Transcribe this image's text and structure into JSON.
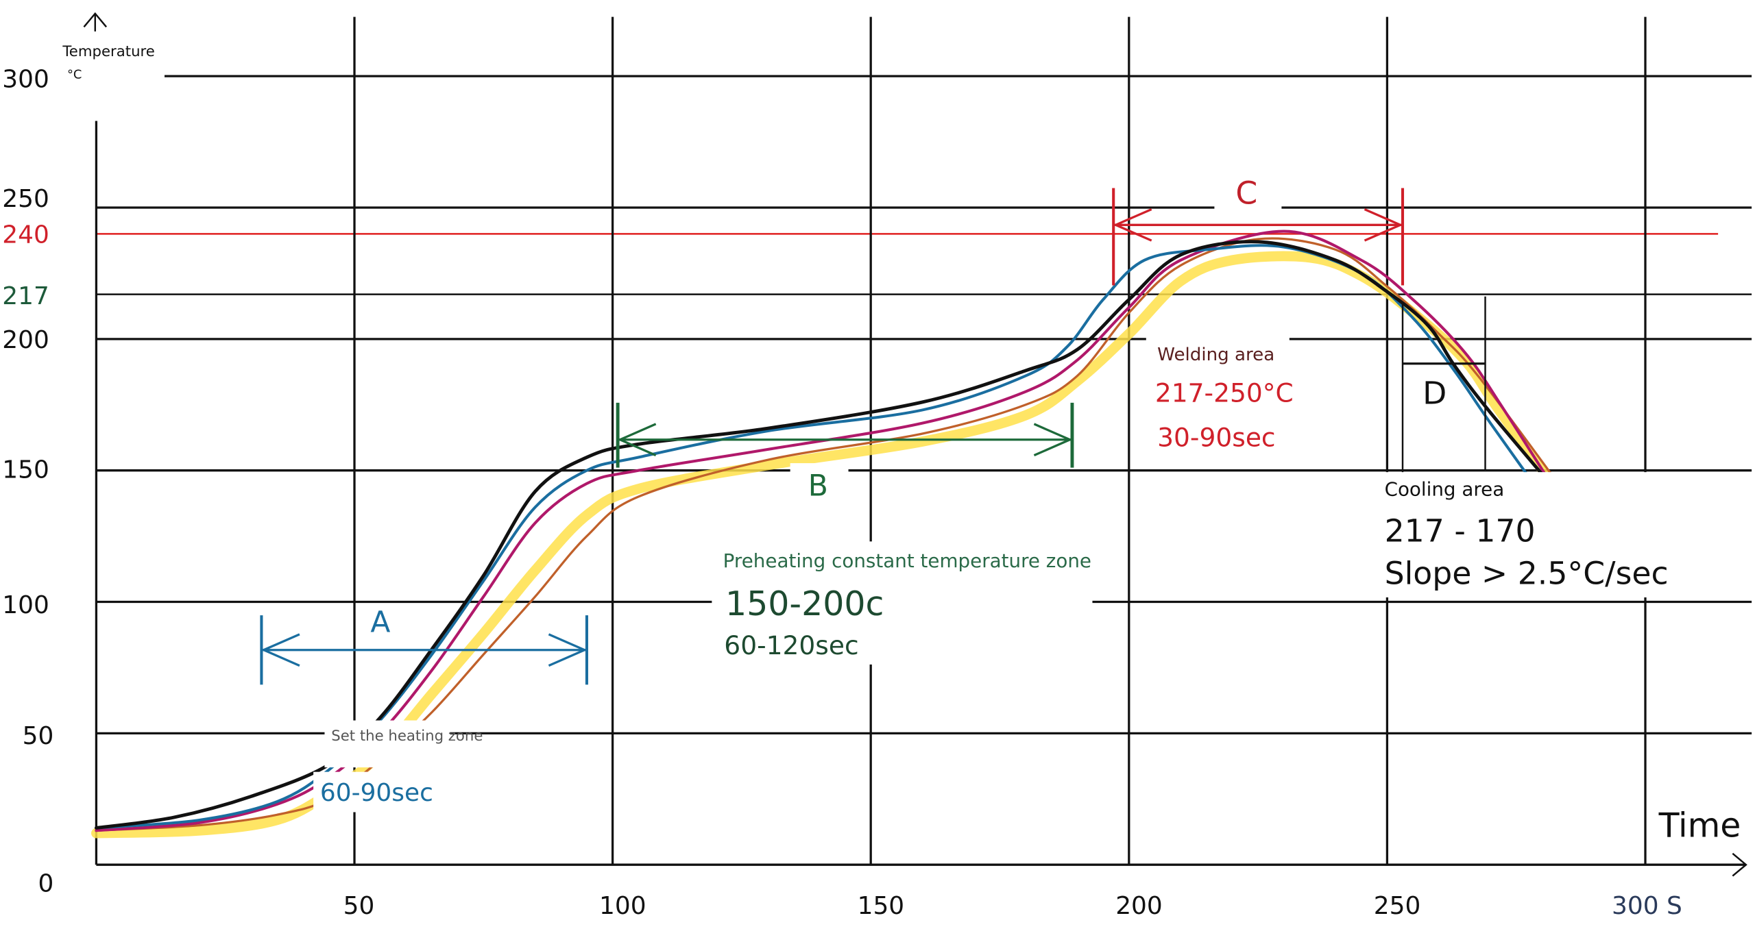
{
  "chart_data": {
    "type": "line",
    "ylabel": "Temperature",
    "yunit": "°C",
    "xlabel": "Time",
    "xlim": [
      0,
      300
    ],
    "ylim": [
      0,
      300
    ],
    "grid": true,
    "x_ticks": [
      "50",
      "100",
      "150",
      "200",
      "250",
      "300 S"
    ],
    "x_tick_values": [
      50,
      100,
      150,
      200,
      250,
      300
    ],
    "y_ticks": [
      "0",
      "50",
      "100",
      "150",
      "200",
      "217",
      "240",
      "250",
      "300"
    ],
    "y_tick_values": [
      0,
      50,
      100,
      150,
      200,
      217,
      240,
      250,
      300
    ],
    "y_tick_colors": {
      "217": "#1d5a3a",
      "240": "#d0202a"
    },
    "reference_line": {
      "y": 240,
      "color": "#e02020"
    },
    "series": [
      {
        "color": "#ffe14a",
        "width": "thick",
        "points": [
          [
            0,
            12
          ],
          [
            20,
            13
          ],
          [
            35,
            17
          ],
          [
            45,
            27
          ],
          [
            55,
            42
          ],
          [
            65,
            65
          ],
          [
            75,
            88
          ],
          [
            85,
            112
          ],
          [
            95,
            133
          ],
          [
            105,
            143
          ],
          [
            130,
            152
          ],
          [
            160,
            161
          ],
          [
            180,
            171
          ],
          [
            190,
            184
          ],
          [
            200,
            202
          ],
          [
            210,
            222
          ],
          [
            220,
            230
          ],
          [
            235,
            231
          ],
          [
            245,
            224
          ],
          [
            255,
            210
          ],
          [
            265,
            192
          ],
          [
            272,
            172
          ],
          [
            285,
            137
          ]
        ]
      },
      {
        "color": "#c0602a",
        "width": "thin",
        "points": [
          [
            0,
            13
          ],
          [
            20,
            15
          ],
          [
            35,
            19
          ],
          [
            45,
            25
          ],
          [
            55,
            40
          ],
          [
            65,
            58
          ],
          [
            75,
            80
          ],
          [
            85,
            102
          ],
          [
            95,
            125
          ],
          [
            105,
            140
          ],
          [
            130,
            154
          ],
          [
            160,
            164
          ],
          [
            180,
            175
          ],
          [
            190,
            186
          ],
          [
            200,
            210
          ],
          [
            210,
            228
          ],
          [
            225,
            238
          ],
          [
            240,
            234
          ],
          [
            250,
            220
          ],
          [
            260,
            202
          ],
          [
            268,
            185
          ],
          [
            285,
            140
          ]
        ]
      },
      {
        "color": "#b0186a",
        "width": "normal",
        "points": [
          [
            0,
            13
          ],
          [
            20,
            16
          ],
          [
            35,
            23
          ],
          [
            45,
            33
          ],
          [
            55,
            50
          ],
          [
            65,
            74
          ],
          [
            75,
            102
          ],
          [
            85,
            130
          ],
          [
            95,
            145
          ],
          [
            105,
            150
          ],
          [
            130,
            158
          ],
          [
            160,
            168
          ],
          [
            180,
            180
          ],
          [
            190,
            192
          ],
          [
            200,
            212
          ],
          [
            210,
            230
          ],
          [
            230,
            241
          ],
          [
            245,
            230
          ],
          [
            255,
            215
          ],
          [
            265,
            195
          ],
          [
            272,
            175
          ],
          [
            284,
            138
          ]
        ]
      },
      {
        "color": "#1a6ea0",
        "width": "normal",
        "points": [
          [
            0,
            14
          ],
          [
            20,
            17
          ],
          [
            35,
            24
          ],
          [
            45,
            36
          ],
          [
            55,
            55
          ],
          [
            65,
            80
          ],
          [
            75,
            108
          ],
          [
            85,
            136
          ],
          [
            95,
            150
          ],
          [
            105,
            155
          ],
          [
            130,
            165
          ],
          [
            160,
            173
          ],
          [
            180,
            186
          ],
          [
            188,
            197
          ],
          [
            195,
            215
          ],
          [
            203,
            230
          ],
          [
            215,
            234
          ],
          [
            230,
            235
          ],
          [
            245,
            225
          ],
          [
            255,
            208
          ],
          [
            263,
            188
          ],
          [
            270,
            168
          ],
          [
            282,
            135
          ]
        ]
      },
      {
        "color": "#111111",
        "width": "thick",
        "points": [
          [
            0,
            14
          ],
          [
            15,
            18
          ],
          [
            30,
            26
          ],
          [
            45,
            38
          ],
          [
            55,
            56
          ],
          [
            65,
            82
          ],
          [
            75,
            110
          ],
          [
            85,
            142
          ],
          [
            95,
            155
          ],
          [
            105,
            160
          ],
          [
            130,
            166
          ],
          [
            160,
            176
          ],
          [
            180,
            188
          ],
          [
            190,
            196
          ],
          [
            200,
            215
          ],
          [
            210,
            232
          ],
          [
            225,
            237
          ],
          [
            240,
            230
          ],
          [
            250,
            218
          ],
          [
            258,
            205
          ],
          [
            263,
            190
          ],
          [
            270,
            172
          ],
          [
            285,
            137
          ]
        ]
      }
    ],
    "annotations": {
      "A": {
        "label": "A",
        "color": "#1a6ea0",
        "title": "Set the heating zone",
        "range_text": "60-90sec",
        "span": [
          32,
          95
        ]
      },
      "B": {
        "label": "B",
        "color": "#1d6a3a",
        "title": "Preheating constant temperature zone",
        "temp_text": "150-200c",
        "time_text": "60-120sec",
        "span": [
          101,
          189
        ]
      },
      "C": {
        "label": "C",
        "color": "#d0202a",
        "title": "Welding area",
        "temp_text": "217-250°C",
        "time_text": "30-90sec",
        "span": [
          197,
          253
        ]
      },
      "D": {
        "label": "D",
        "color": "#111111",
        "title": "Cooling area",
        "temp_text": "217 - 170",
        "slope_text": "Slope > 2.5°C/sec",
        "span": [
          253,
          269
        ]
      }
    }
  }
}
